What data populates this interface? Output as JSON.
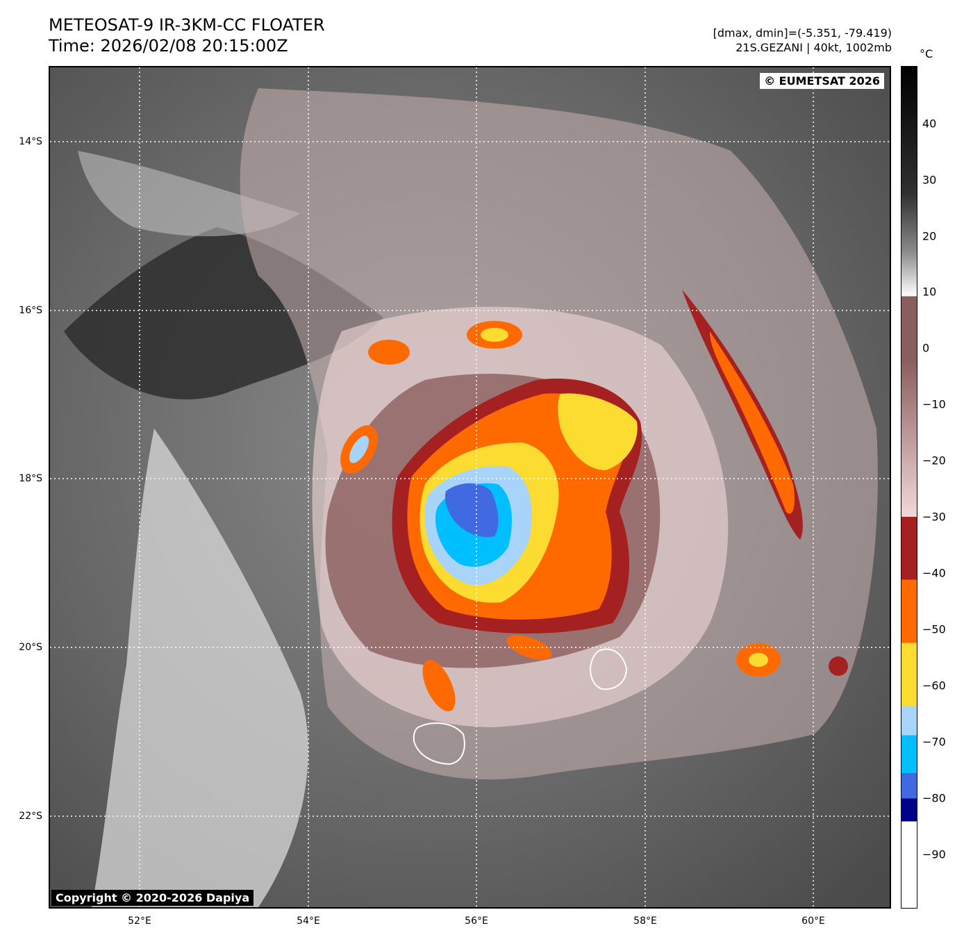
{
  "header": {
    "title_line1": "METEOSAT-9 IR-3KM-CC FLOATER",
    "title_line2": "Time: 2026/02/08 20:15:00Z",
    "info_line1": "[dmax, dmin]=(-5.351, -79.419)",
    "info_line2": "21S.GEZANI | 40kt, 1002mb"
  },
  "map": {
    "copyright_top": "© EUMETSAT 2026",
    "copyright_bottom": "Copyright © 2020-2026 Dapiya",
    "lat_labels": [
      "14°S",
      "16°S",
      "18°S",
      "20°S",
      "22°S"
    ],
    "lon_labels": [
      "52°E",
      "54°E",
      "56°E",
      "58°E",
      "60°E"
    ]
  },
  "colorbar": {
    "unit": "°C",
    "ticks": [
      "40",
      "30",
      "20",
      "10",
      "0",
      "−10",
      "−20",
      "−30",
      "−40",
      "−50",
      "−60",
      "−70",
      "−80",
      "−90"
    ],
    "colors": {
      "dark_blue": "#00008b",
      "royal_blue": "#4169e1",
      "sky_blue": "#00bfff",
      "light_blue": "#a7d4f8",
      "yellow": "#fddc32",
      "orange": "#ff6a00",
      "dark_red": "#a52020",
      "mauve": "#8b5e5e",
      "pink": "#f2d8d8"
    }
  }
}
